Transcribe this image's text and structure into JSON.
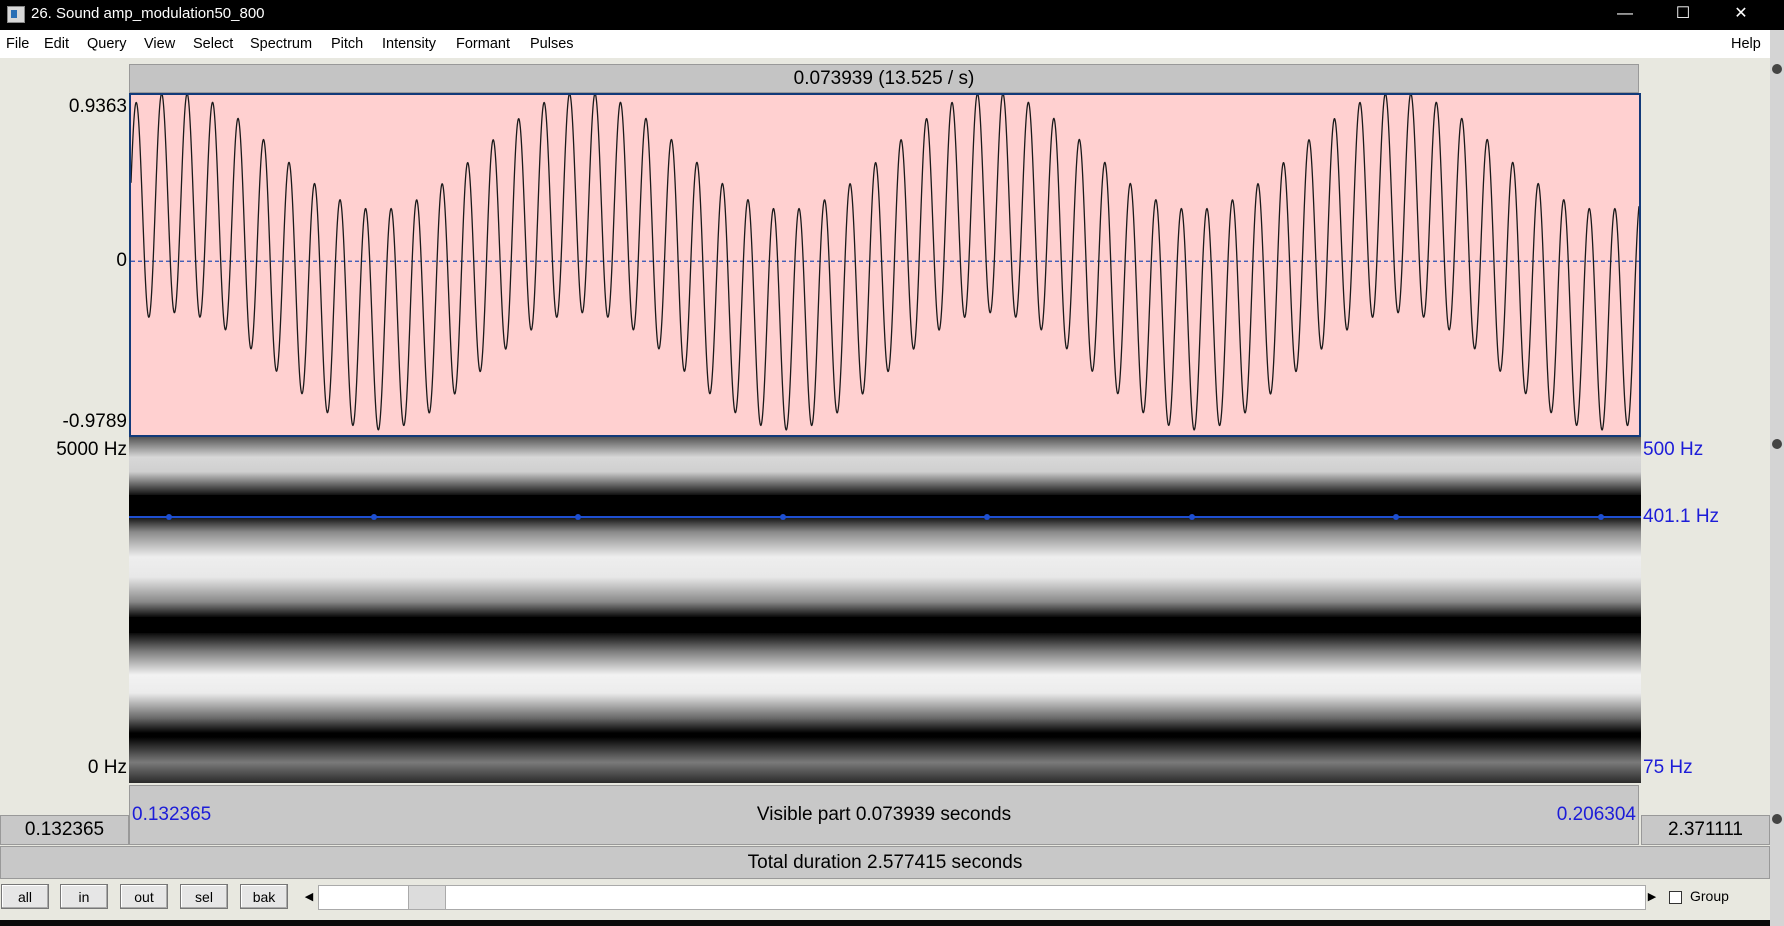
{
  "window": {
    "title": "26. Sound amp_modulation50_800",
    "minimize_glyph": "—",
    "maximize_glyph": "☐",
    "close_glyph": "✕"
  },
  "menu": [
    "File",
    "Edit",
    "Query",
    "View",
    "Select",
    "Spectrum",
    "Pitch",
    "Intensity",
    "Formant",
    "Pulses"
  ],
  "help_label": "Help",
  "selection_header": "0.073939 (13.525 / s)",
  "waveform": {
    "ymax_label": "0.9363",
    "zero_label": "0",
    "ymin_label": "-0.9789",
    "ymax": 0.9363,
    "ymin": -0.9789,
    "carrier_hz": 800,
    "modulation_hz": 50
  },
  "spectrogram": {
    "top_label": "5000 Hz",
    "bottom_label": "0 Hz",
    "pitch_top_label": "500 Hz",
    "pitch_value_label": "401.1 Hz",
    "pitch_bottom_label": "75 Hz",
    "pitch_value_hz": 401.1,
    "pitch_top_hz": 500,
    "pitch_bottom_hz": 75
  },
  "time": {
    "visible_start": "0.132365",
    "visible_end": "0.206304",
    "visible_part": "Visible part 0.073939 seconds",
    "left_box": "0.132365",
    "right_box": "2.371111",
    "total": "Total duration 2.577415 seconds"
  },
  "toolbar": {
    "buttons": [
      "all",
      "in",
      "out",
      "sel",
      "bak"
    ],
    "scroll_left": "◀",
    "scroll_right": "▶",
    "group_label": "Group",
    "group_checked": false
  },
  "colors": {
    "wave_bg": "#ffd0d0",
    "wave_line": "#1a1a1a",
    "pitch_line": "#1e4fd0",
    "label_blue": "#1c1cd8"
  }
}
